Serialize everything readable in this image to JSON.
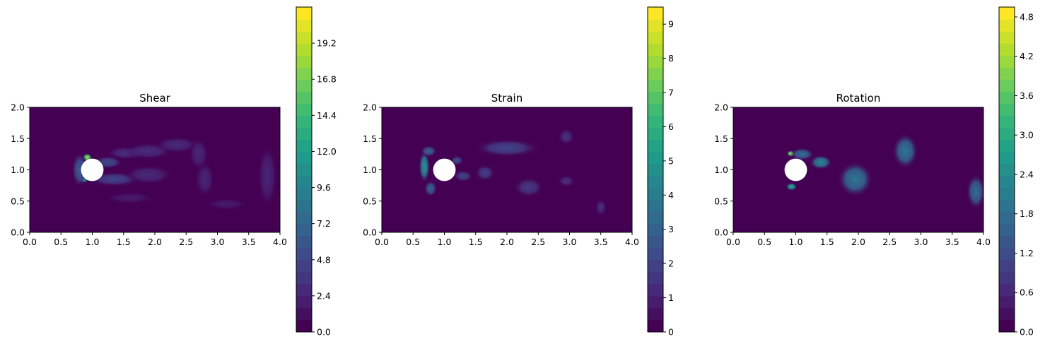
{
  "figure": {
    "background": "#ffffff"
  },
  "colormap": {
    "name": "viridis",
    "stops": [
      "#440154",
      "#482878",
      "#3e4989",
      "#31688e",
      "#26828e",
      "#1f9e89",
      "#35b779",
      "#6ece58",
      "#b5de2b",
      "#fde725"
    ]
  },
  "chart_data": [
    {
      "type": "heatmap",
      "title": "Shear",
      "xlabel": "",
      "ylabel": "",
      "xlim": [
        0.0,
        4.0
      ],
      "ylim": [
        0.0,
        2.0
      ],
      "xticks": [
        "0.0",
        "0.5",
        "1.0",
        "1.5",
        "2.0",
        "2.5",
        "3.0",
        "3.5",
        "4.0"
      ],
      "yticks": [
        "0.0",
        "0.5",
        "1.0",
        "1.5",
        "2.0"
      ],
      "colorbar": {
        "min": 0.0,
        "max": 21.6,
        "ticks": [
          "0.0",
          "2.4",
          "4.8",
          "7.2",
          "9.6",
          "12.0",
          "14.4",
          "16.8",
          "19.2"
        ]
      },
      "obstacle": {
        "shape": "circle",
        "cx": 1.0,
        "cy": 1.0,
        "r": 0.18
      },
      "blobs": [
        {
          "x": 0.92,
          "y": 1.2,
          "rx": 0.06,
          "ry": 0.05,
          "v": 19.5
        },
        {
          "x": 0.87,
          "y": 0.84,
          "rx": 0.05,
          "ry": 0.04,
          "v": 14.5
        },
        {
          "x": 0.8,
          "y": 1.0,
          "rx": 0.1,
          "ry": 0.22,
          "v": 6.5
        },
        {
          "x": 1.25,
          "y": 1.12,
          "rx": 0.18,
          "ry": 0.08,
          "v": 5.0
        },
        {
          "x": 1.35,
          "y": 0.85,
          "rx": 0.32,
          "ry": 0.09,
          "v": 4.5
        },
        {
          "x": 1.55,
          "y": 1.27,
          "rx": 0.25,
          "ry": 0.08,
          "v": 3.0
        },
        {
          "x": 1.9,
          "y": 1.3,
          "rx": 0.3,
          "ry": 0.1,
          "v": 2.8
        },
        {
          "x": 2.35,
          "y": 1.4,
          "rx": 0.28,
          "ry": 0.1,
          "v": 2.6
        },
        {
          "x": 2.7,
          "y": 1.25,
          "rx": 0.12,
          "ry": 0.2,
          "v": 2.4
        },
        {
          "x": 2.8,
          "y": 0.85,
          "rx": 0.12,
          "ry": 0.22,
          "v": 2.2
        },
        {
          "x": 1.9,
          "y": 0.92,
          "rx": 0.3,
          "ry": 0.12,
          "v": 2.6
        },
        {
          "x": 1.6,
          "y": 0.55,
          "rx": 0.3,
          "ry": 0.07,
          "v": 1.6
        },
        {
          "x": 3.15,
          "y": 0.45,
          "rx": 0.25,
          "ry": 0.07,
          "v": 1.6
        },
        {
          "x": 3.8,
          "y": 0.9,
          "rx": 0.12,
          "ry": 0.4,
          "v": 2.2
        }
      ]
    },
    {
      "type": "heatmap",
      "title": "Strain",
      "xlabel": "",
      "ylabel": "",
      "xlim": [
        0.0,
        4.0
      ],
      "ylim": [
        0.0,
        2.0
      ],
      "xticks": [
        "0.0",
        "0.5",
        "1.0",
        "1.5",
        "2.0",
        "2.5",
        "3.0",
        "3.5",
        "4.0"
      ],
      "yticks": [
        "0.0",
        "0.5",
        "1.0",
        "1.5",
        "2.0"
      ],
      "colorbar": {
        "min": 0,
        "max": 9.5,
        "ticks": [
          "0",
          "1",
          "2",
          "3",
          "4",
          "5",
          "6",
          "7",
          "8",
          "9"
        ]
      },
      "obstacle": {
        "shape": "circle",
        "cx": 1.0,
        "cy": 1.0,
        "r": 0.18
      },
      "blobs": [
        {
          "x": 0.68,
          "y": 1.05,
          "rx": 0.07,
          "ry": 0.2,
          "v": 5.0
        },
        {
          "x": 0.75,
          "y": 1.3,
          "rx": 0.1,
          "ry": 0.07,
          "v": 3.0
        },
        {
          "x": 0.78,
          "y": 0.7,
          "rx": 0.08,
          "ry": 0.1,
          "v": 3.0
        },
        {
          "x": 1.2,
          "y": 1.15,
          "rx": 0.08,
          "ry": 0.06,
          "v": 2.2
        },
        {
          "x": 1.3,
          "y": 0.9,
          "rx": 0.12,
          "ry": 0.07,
          "v": 2.0
        },
        {
          "x": 1.65,
          "y": 0.95,
          "rx": 0.12,
          "ry": 0.1,
          "v": 1.8
        },
        {
          "x": 2.0,
          "y": 1.35,
          "rx": 0.4,
          "ry": 0.11,
          "v": 2.0
        },
        {
          "x": 2.35,
          "y": 0.72,
          "rx": 0.18,
          "ry": 0.12,
          "v": 1.6
        },
        {
          "x": 2.95,
          "y": 0.82,
          "rx": 0.1,
          "ry": 0.07,
          "v": 1.3
        },
        {
          "x": 2.95,
          "y": 1.53,
          "rx": 0.1,
          "ry": 0.1,
          "v": 1.3
        },
        {
          "x": 3.5,
          "y": 0.4,
          "rx": 0.07,
          "ry": 0.1,
          "v": 1.3
        }
      ]
    },
    {
      "type": "heatmap",
      "title": "Rotation",
      "xlabel": "",
      "ylabel": "",
      "xlim": [
        0.0,
        4.0
      ],
      "ylim": [
        0.0,
        2.0
      ],
      "xticks": [
        "0.0",
        "0.5",
        "1.0",
        "1.5",
        "2.0",
        "2.5",
        "3.0",
        "3.5",
        "4.0"
      ],
      "yticks": [
        "0.0",
        "0.5",
        "1.0",
        "1.5",
        "2.0"
      ],
      "colorbar": {
        "min": 0.0,
        "max": 4.95,
        "ticks": [
          "0.0",
          "0.6",
          "1.2",
          "1.8",
          "2.4",
          "3.0",
          "3.6",
          "4.2",
          "4.8"
        ]
      },
      "obstacle": {
        "shape": "circle",
        "cx": 1.0,
        "cy": 1.0,
        "r": 0.18
      },
      "blobs": [
        {
          "x": 0.92,
          "y": 1.26,
          "rx": 0.05,
          "ry": 0.04,
          "v": 4.5
        },
        {
          "x": 0.93,
          "y": 0.73,
          "rx": 0.07,
          "ry": 0.05,
          "v": 3.0
        },
        {
          "x": 1.1,
          "y": 1.25,
          "rx": 0.15,
          "ry": 0.08,
          "v": 1.8
        },
        {
          "x": 1.4,
          "y": 1.12,
          "rx": 0.14,
          "ry": 0.09,
          "v": 2.3
        },
        {
          "x": 1.95,
          "y": 0.85,
          "rx": 0.22,
          "ry": 0.22,
          "v": 2.0
        },
        {
          "x": 2.75,
          "y": 1.3,
          "rx": 0.16,
          "ry": 0.22,
          "v": 2.0
        },
        {
          "x": 3.88,
          "y": 0.65,
          "rx": 0.12,
          "ry": 0.22,
          "v": 1.8
        }
      ]
    }
  ]
}
